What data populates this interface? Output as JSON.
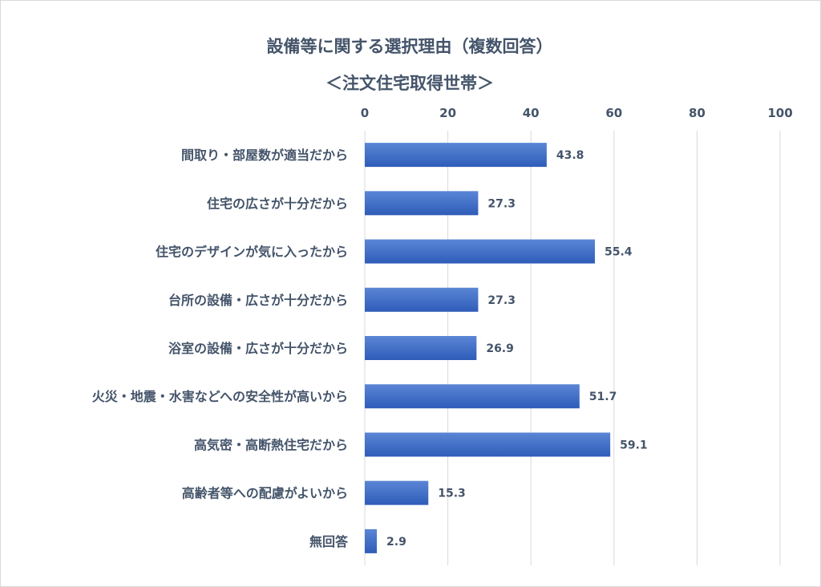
{
  "chart_data": {
    "type": "bar",
    "orientation": "horizontal",
    "title": "設備等に関する選択理由（複数回答）",
    "subtitle": "＜注文住宅取得世帯＞",
    "categories": [
      "間取り・部屋数が適当だから",
      "住宅の広さが十分だから",
      "住宅のデザインが気に入ったから",
      "台所の設備・広さが十分だから",
      "浴室の設備・広さが十分だから",
      "火災・地震・水害などへの安全性が高いから",
      "高気密・高断熱住宅だから",
      "高齢者等への配慮がよいから",
      "無回答"
    ],
    "values": [
      43.8,
      27.3,
      55.4,
      27.3,
      26.9,
      51.7,
      59.1,
      15.3,
      2.9
    ],
    "data_labels": [
      "43.8",
      "27.3",
      "55.4",
      "27.3",
      "26.9",
      "51.7",
      "59.1",
      "15.3",
      "2.9"
    ],
    "xlim": [
      0,
      100
    ],
    "xticks": [
      "0",
      "20",
      "40",
      "60",
      "80",
      "100"
    ],
    "axis_position": "top",
    "grid": true,
    "legend": "none",
    "colors": {
      "bar_top": "#5b86d6",
      "bar_bottom": "#2e5cb8",
      "grid": "#d9d9d9",
      "text": "#44546a"
    }
  }
}
